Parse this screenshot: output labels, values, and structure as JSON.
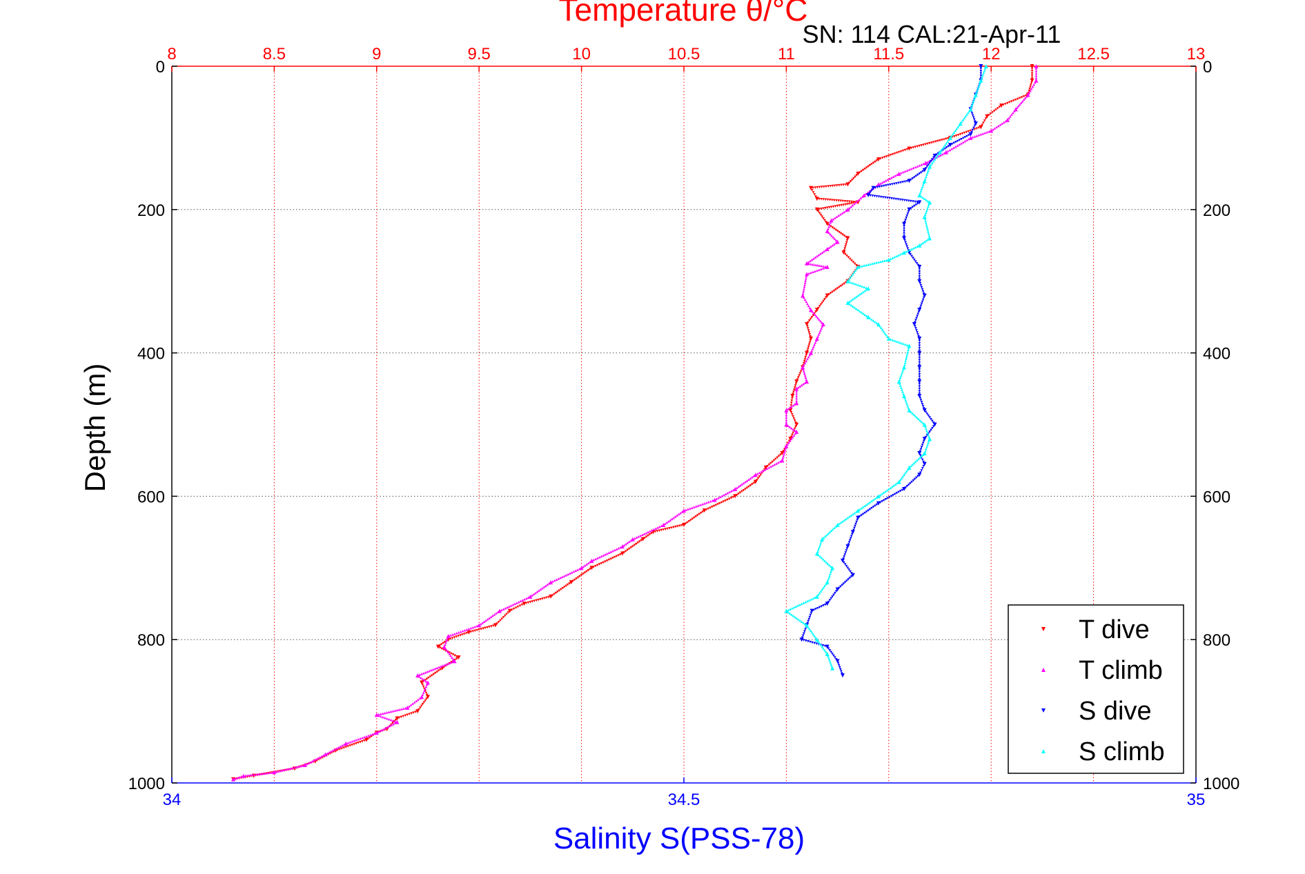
{
  "chart_data": {
    "type": "scatter",
    "title_top": "Temperature θ/°C",
    "subtitle": "SN: 114  CAL:21-Apr-11",
    "ylabel": "Depth (m)",
    "xlabel_bottom": "Salinity S(PSS-78)",
    "y_axis": {
      "range": [
        0,
        1000
      ],
      "reversed": true,
      "ticks": [
        0,
        200,
        400,
        600,
        800,
        1000
      ],
      "tick_labels": [
        "0",
        "200",
        "400",
        "600",
        "800",
        "1000"
      ]
    },
    "x_top_axis": {
      "quantity": "temperature",
      "range": [
        8,
        13
      ],
      "ticks": [
        8,
        8.5,
        9,
        9.5,
        10,
        10.5,
        11,
        11.5,
        12,
        12.5,
        13
      ],
      "tick_labels": [
        "8",
        "8.5",
        "9",
        "9.5",
        "10",
        "10.5",
        "11",
        "11.5",
        "12",
        "12.5",
        "13"
      ]
    },
    "x_bottom_axis": {
      "quantity": "salinity",
      "range": [
        34,
        35
      ],
      "ticks": [
        34,
        34.5,
        35
      ],
      "tick_labels": [
        "34",
        "34.5",
        "35"
      ]
    },
    "grid": true,
    "legend_position": "bottom-right",
    "colors": {
      "axis_temperature": "#ff0000",
      "axis_salinity": "#0000ff",
      "grid": "#555555"
    },
    "series": [
      {
        "name": "T dive",
        "axis": "temperature",
        "color": "#ff0000",
        "marker": "triangle-down",
        "points": [
          [
            12.2,
            0
          ],
          [
            12.2,
            20
          ],
          [
            12.18,
            40
          ],
          [
            12.05,
            55
          ],
          [
            11.98,
            70
          ],
          [
            11.95,
            85
          ],
          [
            11.8,
            100
          ],
          [
            11.6,
            115
          ],
          [
            11.45,
            130
          ],
          [
            11.35,
            150
          ],
          [
            11.3,
            165
          ],
          [
            11.12,
            170
          ],
          [
            11.15,
            185
          ],
          [
            11.35,
            190
          ],
          [
            11.15,
            200
          ],
          [
            11.2,
            220
          ],
          [
            11.3,
            240
          ],
          [
            11.28,
            260
          ],
          [
            11.35,
            280
          ],
          [
            11.3,
            300
          ],
          [
            11.2,
            320
          ],
          [
            11.15,
            340
          ],
          [
            11.1,
            360
          ],
          [
            11.12,
            380
          ],
          [
            11.1,
            400
          ],
          [
            11.08,
            420
          ],
          [
            11.05,
            440
          ],
          [
            11.03,
            460
          ],
          [
            11.02,
            480
          ],
          [
            11.05,
            500
          ],
          [
            11.02,
            520
          ],
          [
            10.98,
            540
          ],
          [
            10.9,
            560
          ],
          [
            10.85,
            580
          ],
          [
            10.75,
            600
          ],
          [
            10.6,
            620
          ],
          [
            10.5,
            640
          ],
          [
            10.35,
            650
          ],
          [
            10.3,
            660
          ],
          [
            10.2,
            680
          ],
          [
            10.05,
            700
          ],
          [
            9.95,
            720
          ],
          [
            9.85,
            740
          ],
          [
            9.72,
            750
          ],
          [
            9.65,
            760
          ],
          [
            9.58,
            780
          ],
          [
            9.45,
            790
          ],
          [
            9.35,
            800
          ],
          [
            9.3,
            810
          ],
          [
            9.4,
            825
          ],
          [
            9.32,
            840
          ],
          [
            9.22,
            860
          ],
          [
            9.25,
            880
          ],
          [
            9.2,
            900
          ],
          [
            9.1,
            910
          ],
          [
            9.05,
            925
          ],
          [
            9.0,
            930
          ],
          [
            8.95,
            940
          ],
          [
            8.8,
            955
          ],
          [
            8.7,
            970
          ],
          [
            8.6,
            980
          ],
          [
            8.4,
            990
          ],
          [
            8.3,
            995
          ]
        ]
      },
      {
        "name": "T climb",
        "axis": "temperature",
        "color": "#ff00ff",
        "marker": "triangle-up",
        "points": [
          [
            12.22,
            0
          ],
          [
            12.22,
            20
          ],
          [
            12.18,
            40
          ],
          [
            12.12,
            60
          ],
          [
            12.08,
            75
          ],
          [
            12.0,
            90
          ],
          [
            11.9,
            100
          ],
          [
            11.78,
            120
          ],
          [
            11.68,
            135
          ],
          [
            11.55,
            150
          ],
          [
            11.45,
            165
          ],
          [
            11.38,
            180
          ],
          [
            11.3,
            200
          ],
          [
            11.22,
            215
          ],
          [
            11.2,
            230
          ],
          [
            11.25,
            245
          ],
          [
            11.2,
            255
          ],
          [
            11.1,
            275
          ],
          [
            11.2,
            280
          ],
          [
            11.1,
            290
          ],
          [
            11.08,
            320
          ],
          [
            11.12,
            340
          ],
          [
            11.18,
            360
          ],
          [
            11.15,
            380
          ],
          [
            11.12,
            400
          ],
          [
            11.08,
            420
          ],
          [
            11.1,
            440
          ],
          [
            11.05,
            450
          ],
          [
            11.05,
            470
          ],
          [
            11.0,
            480
          ],
          [
            11.0,
            500
          ],
          [
            11.05,
            510
          ],
          [
            11.0,
            530
          ],
          [
            10.98,
            550
          ],
          [
            10.85,
            570
          ],
          [
            10.75,
            590
          ],
          [
            10.65,
            605
          ],
          [
            10.5,
            620
          ],
          [
            10.4,
            640
          ],
          [
            10.25,
            660
          ],
          [
            10.2,
            670
          ],
          [
            10.05,
            690
          ],
          [
            10.0,
            700
          ],
          [
            9.85,
            720
          ],
          [
            9.75,
            740
          ],
          [
            9.6,
            760
          ],
          [
            9.5,
            780
          ],
          [
            9.35,
            795
          ],
          [
            9.33,
            810
          ],
          [
            9.38,
            830
          ],
          [
            9.2,
            850
          ],
          [
            9.25,
            860
          ],
          [
            9.22,
            880
          ],
          [
            9.15,
            895
          ],
          [
            9.0,
            905
          ],
          [
            9.1,
            915
          ],
          [
            9.0,
            930
          ],
          [
            8.85,
            945
          ],
          [
            8.75,
            960
          ],
          [
            8.65,
            975
          ],
          [
            8.5,
            985
          ],
          [
            8.35,
            990
          ],
          [
            8.3,
            995
          ]
        ]
      },
      {
        "name": "S dive",
        "axis": "salinity",
        "color": "#0000ff",
        "marker": "triangle-down",
        "points": [
          [
            34.79,
            0
          ],
          [
            34.79,
            20
          ],
          [
            34.785,
            40
          ],
          [
            34.78,
            60
          ],
          [
            34.785,
            80
          ],
          [
            34.78,
            95
          ],
          [
            34.76,
            110
          ],
          [
            34.745,
            125
          ],
          [
            34.735,
            145
          ],
          [
            34.72,
            160
          ],
          [
            34.685,
            170
          ],
          [
            34.68,
            180
          ],
          [
            34.73,
            190
          ],
          [
            34.72,
            200
          ],
          [
            34.715,
            220
          ],
          [
            34.715,
            240
          ],
          [
            34.72,
            260
          ],
          [
            34.73,
            280
          ],
          [
            34.73,
            300
          ],
          [
            34.735,
            320
          ],
          [
            34.73,
            340
          ],
          [
            34.725,
            360
          ],
          [
            34.73,
            380
          ],
          [
            34.73,
            400
          ],
          [
            34.73,
            420
          ],
          [
            34.73,
            440
          ],
          [
            34.73,
            460
          ],
          [
            34.735,
            480
          ],
          [
            34.745,
            500
          ],
          [
            34.735,
            520
          ],
          [
            34.73,
            540
          ],
          [
            34.735,
            555
          ],
          [
            34.73,
            570
          ],
          [
            34.715,
            590
          ],
          [
            34.69,
            610
          ],
          [
            34.67,
            630
          ],
          [
            34.665,
            650
          ],
          [
            34.66,
            670
          ],
          [
            34.655,
            690
          ],
          [
            34.665,
            710
          ],
          [
            34.65,
            730
          ],
          [
            34.64,
            750
          ],
          [
            34.625,
            760
          ],
          [
            34.62,
            780
          ],
          [
            34.615,
            800
          ],
          [
            34.64,
            810
          ],
          [
            34.65,
            830
          ],
          [
            34.655,
            850
          ]
        ]
      },
      {
        "name": "S climb",
        "axis": "salinity",
        "color": "#00ffff",
        "marker": "triangle-up",
        "points": [
          [
            34.795,
            0
          ],
          [
            34.79,
            20
          ],
          [
            34.785,
            40
          ],
          [
            34.78,
            60
          ],
          [
            34.77,
            80
          ],
          [
            34.76,
            100
          ],
          [
            34.75,
            120
          ],
          [
            34.74,
            140
          ],
          [
            34.735,
            160
          ],
          [
            34.73,
            180
          ],
          [
            34.74,
            190
          ],
          [
            34.735,
            210
          ],
          [
            34.74,
            240
          ],
          [
            34.73,
            250
          ],
          [
            34.715,
            260
          ],
          [
            34.7,
            270
          ],
          [
            34.67,
            280
          ],
          [
            34.66,
            300
          ],
          [
            34.68,
            310
          ],
          [
            34.66,
            330
          ],
          [
            34.68,
            350
          ],
          [
            34.69,
            360
          ],
          [
            34.7,
            380
          ],
          [
            34.72,
            390
          ],
          [
            34.715,
            420
          ],
          [
            34.71,
            440
          ],
          [
            34.715,
            460
          ],
          [
            34.72,
            480
          ],
          [
            34.735,
            500
          ],
          [
            34.74,
            520
          ],
          [
            34.735,
            540
          ],
          [
            34.72,
            560
          ],
          [
            34.71,
            580
          ],
          [
            34.69,
            600
          ],
          [
            34.67,
            620
          ],
          [
            34.65,
            640
          ],
          [
            34.635,
            660
          ],
          [
            34.63,
            680
          ],
          [
            34.645,
            700
          ],
          [
            34.64,
            720
          ],
          [
            34.63,
            740
          ],
          [
            34.6,
            760
          ],
          [
            34.62,
            780
          ],
          [
            34.63,
            800
          ],
          [
            34.64,
            820
          ],
          [
            34.645,
            840
          ]
        ]
      }
    ],
    "legend": [
      {
        "label": "T dive",
        "color": "#ff0000",
        "marker": "triangle-down"
      },
      {
        "label": "T climb",
        "color": "#ff00ff",
        "marker": "triangle-up"
      },
      {
        "label": "S dive",
        "color": "#0000ff",
        "marker": "triangle-down"
      },
      {
        "label": "S climb",
        "color": "#00ffff",
        "marker": "triangle-up"
      }
    ]
  }
}
